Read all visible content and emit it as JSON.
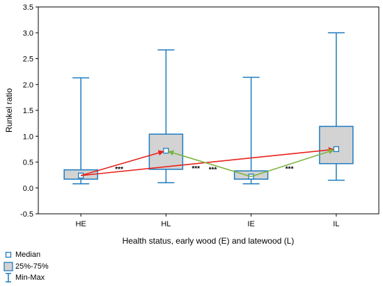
{
  "chart_data": {
    "type": "boxplot",
    "xlabel": "Health status, early wood (E) and latewood (L)",
    "ylabel": "Runkel ratio",
    "ylim": [
      -0.5,
      3.5
    ],
    "yticks": [
      "-0.5",
      "0.0",
      "0.5",
      "1.0",
      "1.5",
      "2.0",
      "2.5",
      "3.0",
      "3.5"
    ],
    "categories": [
      "HE",
      "HL",
      "IE",
      "IL"
    ],
    "boxes": [
      {
        "category": "HE",
        "min": 0.08,
        "q1": 0.17,
        "median": 0.24,
        "q3": 0.35,
        "max": 2.13
      },
      {
        "category": "HL",
        "min": 0.1,
        "q1": 0.36,
        "median": 0.72,
        "q3": 1.04,
        "max": 2.67
      },
      {
        "category": "IE",
        "min": 0.08,
        "q1": 0.17,
        "median": 0.22,
        "q3": 0.33,
        "max": 2.14
      },
      {
        "category": "IL",
        "min": 0.15,
        "q1": 0.47,
        "median": 0.75,
        "q3": 1.19,
        "max": 3.0
      }
    ],
    "annotations": [
      {
        "from": "HE",
        "to": "HL",
        "color": "#e8201a",
        "label": "***"
      },
      {
        "from": "HE",
        "to": "IL",
        "color": "#e8201a",
        "label": "***"
      },
      {
        "from": "IE",
        "to": "HL",
        "color": "#7cb340",
        "label": "***"
      },
      {
        "from": "IE",
        "to": "IL",
        "color": "#7cb340",
        "label": "***"
      }
    ],
    "legend": [
      {
        "symbol": "median",
        "label": "Median"
      },
      {
        "symbol": "box",
        "label": "25%-75%"
      },
      {
        "symbol": "whisker",
        "label": "Min-Max"
      }
    ],
    "colors": {
      "box_stroke": "#1e7bbf",
      "box_fill": "#d3d3d3",
      "red": "#e8201a",
      "green": "#7cb340"
    },
    "grid": false,
    "legend_position": "bottom-left"
  }
}
